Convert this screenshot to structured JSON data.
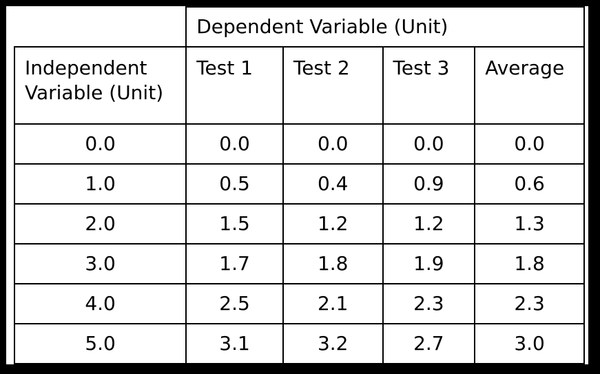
{
  "chart_data": {
    "type": "table",
    "group_header": "Dependent Variable (Unit)",
    "columns": [
      "Independent Variable (Unit)",
      "Test 1",
      "Test 2",
      "Test 3",
      "Average"
    ],
    "rows": [
      [
        "0.0",
        "0.0",
        "0.0",
        "0.0",
        "0.0"
      ],
      [
        "1.0",
        "0.5",
        "0.4",
        "0.9",
        "0.6"
      ],
      [
        "2.0",
        "1.5",
        "1.2",
        "1.2",
        "1.3"
      ],
      [
        "3.0",
        "1.7",
        "1.8",
        "1.9",
        "1.8"
      ],
      [
        "4.0",
        "2.5",
        "2.1",
        "2.3",
        "2.3"
      ],
      [
        "5.0",
        "3.1",
        "3.2",
        "2.7",
        "3.0"
      ]
    ]
  }
}
